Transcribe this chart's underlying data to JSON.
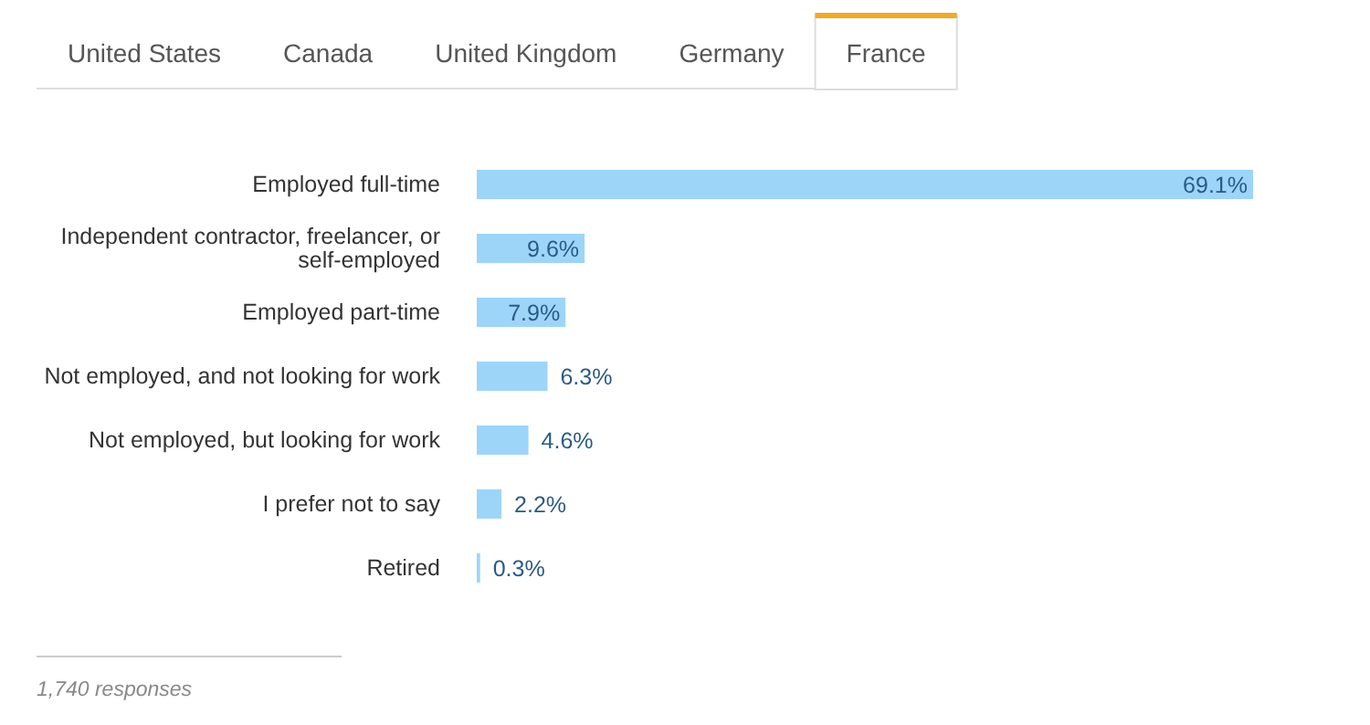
{
  "chart_data": {
    "type": "bar",
    "orientation": "horizontal",
    "categories": [
      "Employed full-time",
      "Independent contractor, freelancer, or self-employed",
      "Employed part-time",
      "Not employed, and not looking for work",
      "Not employed, but looking for work",
      "I prefer not to say",
      "Retired"
    ],
    "values": [
      69.1,
      9.6,
      7.9,
      6.3,
      4.6,
      2.2,
      0.3
    ],
    "value_labels": [
      "69.1%",
      "9.6%",
      "7.9%",
      "6.3%",
      "4.6%",
      "2.2%",
      "0.3%"
    ],
    "color": "#9dd5f8",
    "annotations": [
      "United States",
      "Canada",
      "United Kingdom",
      "Germany",
      "France",
      "1,740 responses"
    ]
  }
}
